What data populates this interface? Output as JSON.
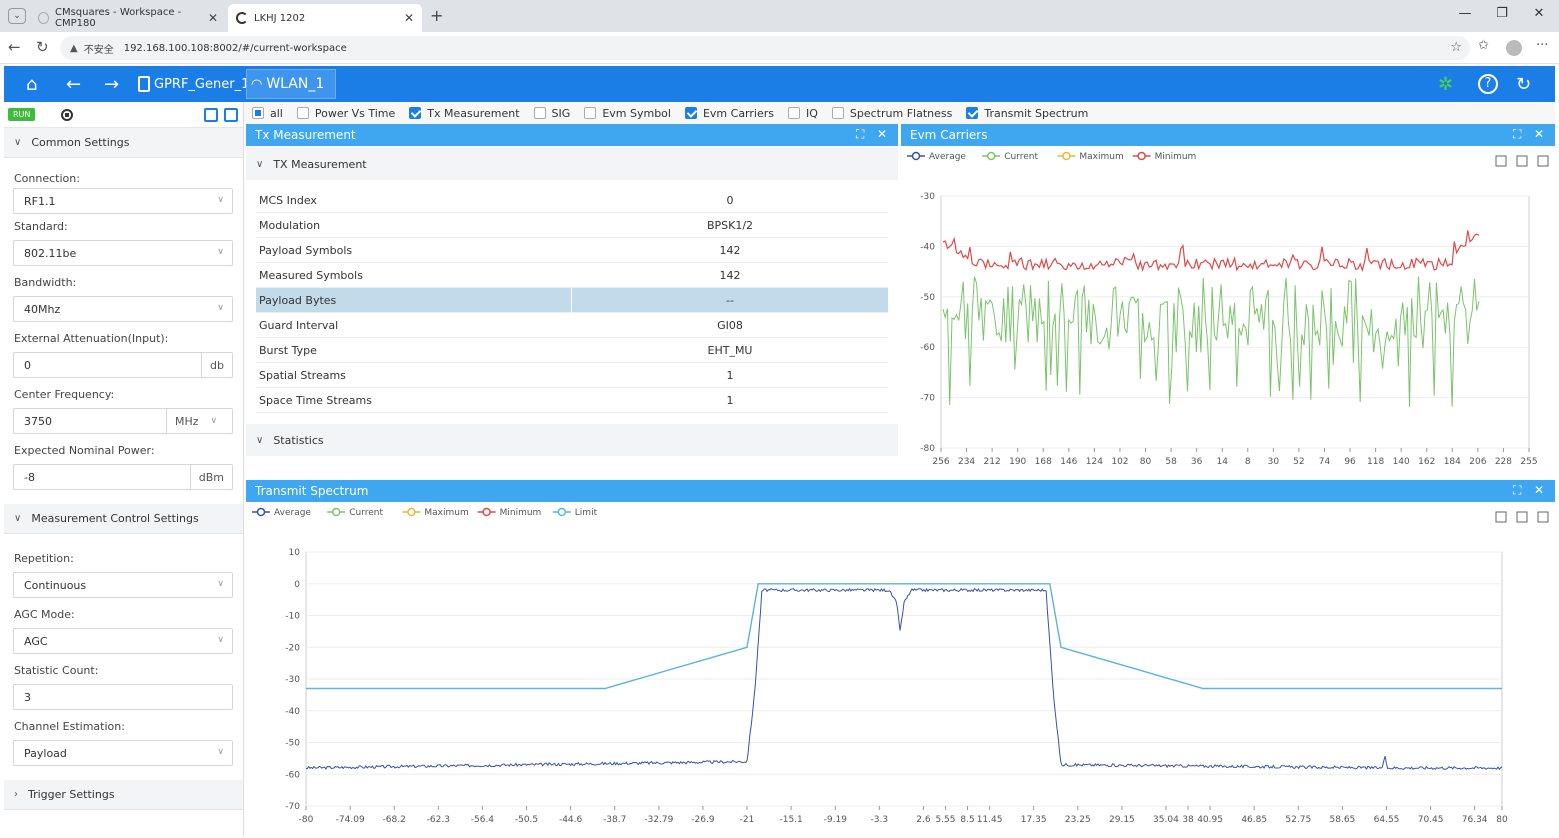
{
  "browser": {
    "tabs": [
      {
        "label": "CMsquares - Workspace - CMP180",
        "active": false
      },
      {
        "label": "LKHJ 1202",
        "active": false
      }
    ],
    "new_tab": "+",
    "security_label": "不安全",
    "url": "192.168.100.108:8002/#/current-workspace"
  },
  "app": {
    "doc_tabs": [
      {
        "label": "GPRF_Gener_1",
        "active": false
      },
      {
        "label": "WLAN_1",
        "active": true
      }
    ],
    "run_label": "RUN"
  },
  "left": {
    "common_title": "Common Settings",
    "fields": {
      "connection_label": "Connection:",
      "connection_value": "RF1.1",
      "standard_label": "Standard:",
      "standard_value": "802.11be",
      "bandwidth_label": "Bandwidth:",
      "bandwidth_value": "40Mhz",
      "ext_att_label": "External Attenuation(Input):",
      "ext_att_value": "0",
      "ext_att_unit": "db",
      "center_freq_label": "Center Frequency:",
      "center_freq_value": "3750",
      "center_freq_unit": "MHz",
      "exp_power_label": "Expected Nominal Power:",
      "exp_power_value": "-8",
      "exp_power_unit": "dBm"
    },
    "meas_title": "Measurement Control Settings",
    "meas": {
      "repetition_label": "Repetition:",
      "repetition_value": "Continuous",
      "agc_label": "AGC Mode:",
      "agc_value": "AGC",
      "stat_label": "Statistic Count:",
      "stat_value": "3",
      "chan_label": "Channel Estimation:",
      "chan_value": "Payload"
    },
    "trigger_title": "Trigger Settings"
  },
  "checks": [
    {
      "label": "all",
      "state": "partial"
    },
    {
      "label": "Power Vs Time",
      "state": "off"
    },
    {
      "label": "Tx Measurement",
      "state": "on"
    },
    {
      "label": "SIG",
      "state": "off"
    },
    {
      "label": "Evm Symbol",
      "state": "off"
    },
    {
      "label": "Evm Carriers",
      "state": "on"
    },
    {
      "label": "IQ",
      "state": "off"
    },
    {
      "label": "Spectrum Flatness",
      "state": "off"
    },
    {
      "label": "Transmit Spectrum",
      "state": "on"
    }
  ],
  "tx": {
    "title": "Tx Measurement",
    "section": "TX Measurement",
    "rows": [
      {
        "k": "MCS Index",
        "v": "0"
      },
      {
        "k": "Modulation",
        "v": "BPSK1/2"
      },
      {
        "k": "Payload Symbols",
        "v": "142"
      },
      {
        "k": "Measured Symbols",
        "v": "142"
      },
      {
        "k": "Payload Bytes",
        "v": "--"
      },
      {
        "k": "Guard Interval",
        "v": "GI08"
      },
      {
        "k": "Burst Type",
        "v": "EHT_MU"
      },
      {
        "k": "Spatial Streams",
        "v": "1"
      },
      {
        "k": "Space Time Streams",
        "v": "1"
      }
    ],
    "statistics": "Statistics"
  },
  "evm": {
    "title": "Evm Carriers",
    "legend": [
      "Average",
      "Current",
      "Maximum",
      "Minimum"
    ]
  },
  "tsp": {
    "title": "Transmit Spectrum",
    "legend": [
      "Average",
      "Current",
      "Maximum",
      "Minimum",
      "Limit"
    ]
  },
  "colors": {
    "header": "#1a7ee6",
    "panel_header": "#3fa7f0",
    "average": "#3352b0",
    "current": "#7ac46b",
    "maximum": "#f2b632",
    "minimum": "#e04848",
    "limit": "#5ab4dc"
  },
  "chart_data": [
    {
      "type": "line",
      "panel": "Evm Carriers",
      "x_ticks": [
        "256",
        "234",
        "212",
        "190",
        "168",
        "146",
        "124",
        "102",
        "80",
        "58",
        "36",
        "14",
        "8",
        "30",
        "52",
        "74",
        "96",
        "118",
        "140",
        "162",
        "184",
        "206",
        "228",
        "255"
      ],
      "y_ticks": [
        -30,
        -40,
        -50,
        -60,
        -70,
        -80
      ],
      "ylim": [
        -80,
        -30
      ],
      "series": [
        {
          "name": "Minimum",
          "description_values": {
            "typical": -43,
            "edge": -38
          }
        },
        {
          "name": "Current",
          "description_values": {
            "typical": -55,
            "low": -73
          }
        }
      ]
    },
    {
      "type": "line",
      "panel": "Transmit Spectrum",
      "x_ticks": [
        "-80",
        "-74.09",
        "-68.2",
        "-62.3",
        "-56.4",
        "-50.5",
        "-44.6",
        "-38.7",
        "-32.79",
        "-26.9",
        "-21",
        "-15.1",
        "-9.19",
        "-3.3",
        "2.6",
        "5.55",
        "8.5",
        "11.45",
        "17.35",
        "23.25",
        "29.15",
        "35.04",
        "38",
        "40.95",
        "46.85",
        "52.75",
        "58.65",
        "64.55",
        "70.45",
        "76.34",
        "80"
      ],
      "y_ticks": [
        10,
        0,
        -10,
        -20,
        -30,
        -40,
        -50,
        -60,
        -70
      ],
      "ylim": [
        -70,
        10
      ],
      "xlim": [
        -80,
        80
      ],
      "series": [
        {
          "name": "Limit",
          "x": [
            -80,
            -40,
            -21,
            -19.5,
            19.5,
            21,
            40,
            80
          ],
          "y": [
            -33,
            -33,
            -20,
            0,
            0,
            -20,
            -33,
            -33
          ]
        },
        {
          "name": "Average",
          "x": [
            -80,
            -21,
            -20,
            -19,
            -2,
            -1,
            -0.5,
            0,
            1,
            19,
            20,
            21,
            64,
            64.3,
            64.6,
            80
          ],
          "y": [
            -58,
            -56,
            -35,
            -2,
            -2,
            -6,
            -15,
            -6,
            -2,
            -2,
            -35,
            -57,
            -58,
            -54,
            -58,
            -58
          ]
        }
      ]
    }
  ]
}
